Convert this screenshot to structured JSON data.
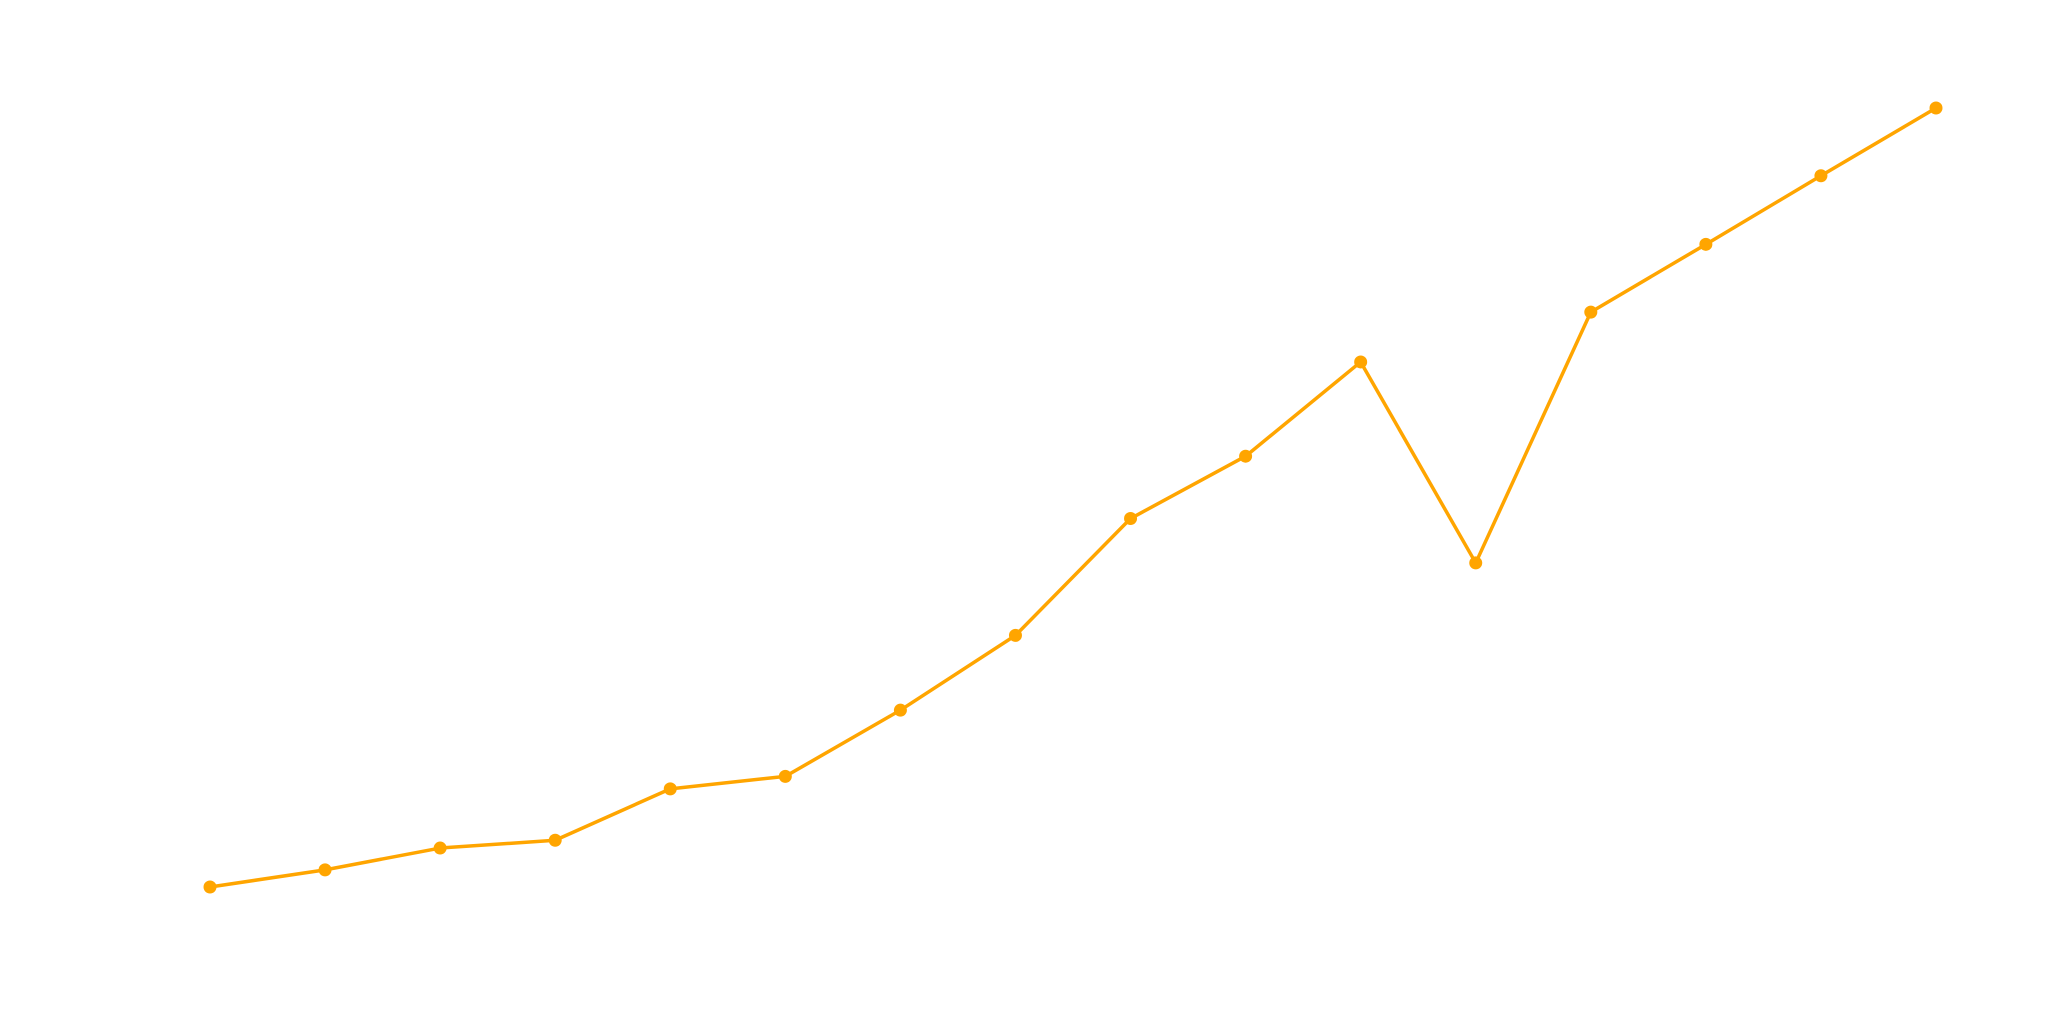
{
  "chart_data": {
    "type": "line",
    "title": "",
    "xlabel": "",
    "ylabel": "",
    "axes_visible": false,
    "grid": false,
    "legend": "none",
    "x": [
      1,
      2,
      3,
      4,
      5,
      6,
      7,
      8,
      9,
      10,
      11,
      12,
      13,
      14,
      15,
      16
    ],
    "series": [
      {
        "color": "#FFA500",
        "marker": "circle",
        "values": [
          0,
          2.2,
          5.0,
          6.0,
          12.6,
          14.2,
          22.7,
          32.3,
          47.3,
          55.3,
          67.4,
          41.6,
          73.8,
          82.5,
          91.3,
          100
        ]
      }
    ],
    "ylim": [
      0,
      100
    ]
  }
}
